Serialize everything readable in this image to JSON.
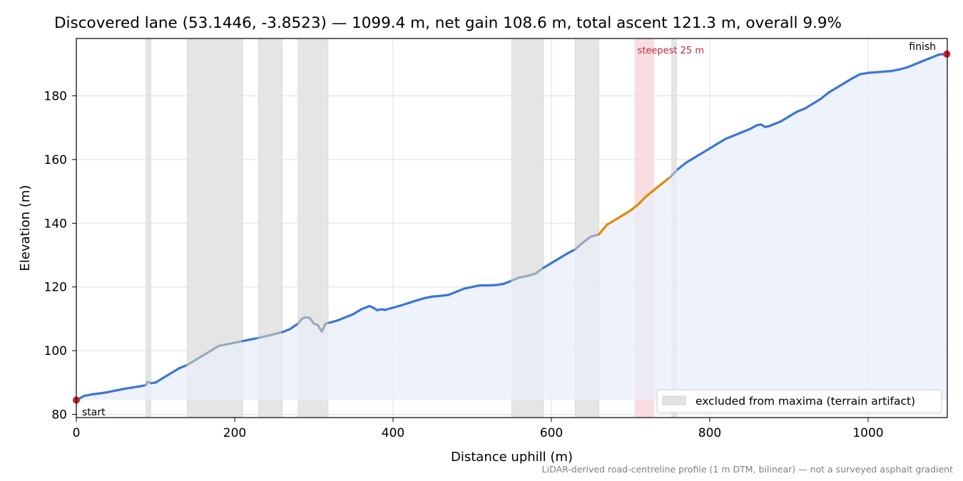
{
  "title": "Discovered lane (53.1446, -3.8523) — 1099.4 m, net gain 108.6 m, total ascent 121.3 m, overall 9.9%",
  "footnote": "LiDAR-derived road-centreline profile (1 m DTM, bilinear) — not a surveyed asphalt gradient",
  "chart_data": {
    "type": "line",
    "title": "Discovered lane (53.1446, -3.8523) — 1099.4 m, net gain 108.6 m, total ascent 121.3 m, overall 9.9%",
    "xlabel": "Distance uphill (m)",
    "ylabel": "Elevation (m)",
    "xlim": [
      0,
      1100
    ],
    "ylim": [
      79,
      198
    ],
    "xticks": [
      0,
      200,
      400,
      600,
      800,
      1000
    ],
    "yticks": [
      80,
      100,
      120,
      140,
      160,
      180
    ],
    "grid": true,
    "legend": {
      "position": "lower-right",
      "entries": [
        "excluded from maxima (terrain artifact)"
      ]
    },
    "colors": {
      "normal": "#3a76d8",
      "excluded": "#9aaabb",
      "steep": "#e08a00",
      "marker": "#d02030",
      "fill": "#e8eef8",
      "band": "#e2e2e2",
      "steepest_band": "#f8d8dc",
      "steepest_text": "#c0283a",
      "grid": "#e0e0e0",
      "footnote": "#808080"
    },
    "excluded_ranges": [
      [
        88,
        94
      ],
      [
        140,
        210
      ],
      [
        230,
        260
      ],
      [
        280,
        318
      ],
      [
        550,
        590
      ],
      [
        630,
        660
      ],
      [
        752,
        758
      ]
    ],
    "steepest_range": [
      705,
      730
    ],
    "steep_range": [
      660,
      760
    ],
    "annotations": {
      "start": "start",
      "finish": "finish",
      "steepest": "steepest 25 m"
    },
    "series": [
      {
        "x": [
          0,
          10,
          20,
          30,
          40,
          50,
          60,
          70,
          80,
          88,
          90,
          95,
          100,
          110,
          120,
          130,
          140,
          150,
          160,
          170,
          180,
          190,
          200,
          210,
          220,
          230,
          240,
          250,
          260,
          270,
          280,
          285,
          290,
          295,
          300,
          305,
          310,
          315,
          320,
          330,
          340,
          350,
          360,
          370,
          375,
          380,
          385,
          390,
          400,
          410,
          420,
          430,
          440,
          450,
          460,
          470,
          480,
          490,
          500,
          510,
          520,
          530,
          540,
          550,
          560,
          570,
          580,
          590,
          600,
          610,
          620,
          630,
          640,
          650,
          660,
          670,
          680,
          690,
          700,
          710,
          720,
          730,
          740,
          750,
          760,
          770,
          780,
          790,
          800,
          810,
          820,
          830,
          840,
          850,
          860,
          865,
          870,
          875,
          880,
          890,
          900,
          910,
          920,
          930,
          940,
          950,
          960,
          970,
          980,
          990,
          1000,
          1010,
          1020,
          1030,
          1040,
          1050,
          1060,
          1070,
          1080,
          1090,
          1099.4
        ],
        "y": [
          84.5,
          85.8,
          86.3,
          86.6,
          87.0,
          87.5,
          88.0,
          88.4,
          88.8,
          89.2,
          90.2,
          89.8,
          90.0,
          91.5,
          93.0,
          94.5,
          95.5,
          97.0,
          98.5,
          100.0,
          101.5,
          102.0,
          102.5,
          103.0,
          103.5,
          104.0,
          104.6,
          105.2,
          105.8,
          106.8,
          108.5,
          110.0,
          110.5,
          110.2,
          108.5,
          108.0,
          106.0,
          108.5,
          108.8,
          109.5,
          110.5,
          111.5,
          113.0,
          114.0,
          113.5,
          112.7,
          113.0,
          112.8,
          113.5,
          114.2,
          115.0,
          115.8,
          116.5,
          117.0,
          117.2,
          117.5,
          118.5,
          119.5,
          120.0,
          120.5,
          120.5,
          120.6,
          121.0,
          122.0,
          123.0,
          123.5,
          124.2,
          126.0,
          127.5,
          129.0,
          130.5,
          131.8,
          134.0,
          135.8,
          136.5,
          139.5,
          141.0,
          142.5,
          144.0,
          146.0,
          148.5,
          150.5,
          152.5,
          154.5,
          157.0,
          159.0,
          160.5,
          162.0,
          163.5,
          165.0,
          166.5,
          167.5,
          168.5,
          169.5,
          170.8,
          171.0,
          170.2,
          170.5,
          171.0,
          172.0,
          173.5,
          175.0,
          176.0,
          177.5,
          179.0,
          181.0,
          182.5,
          184.0,
          185.5,
          186.8,
          187.2,
          187.4,
          187.6,
          187.8,
          188.3,
          189.0,
          190.0,
          191.0,
          192.0,
          193.0,
          193.1
        ]
      }
    ]
  }
}
